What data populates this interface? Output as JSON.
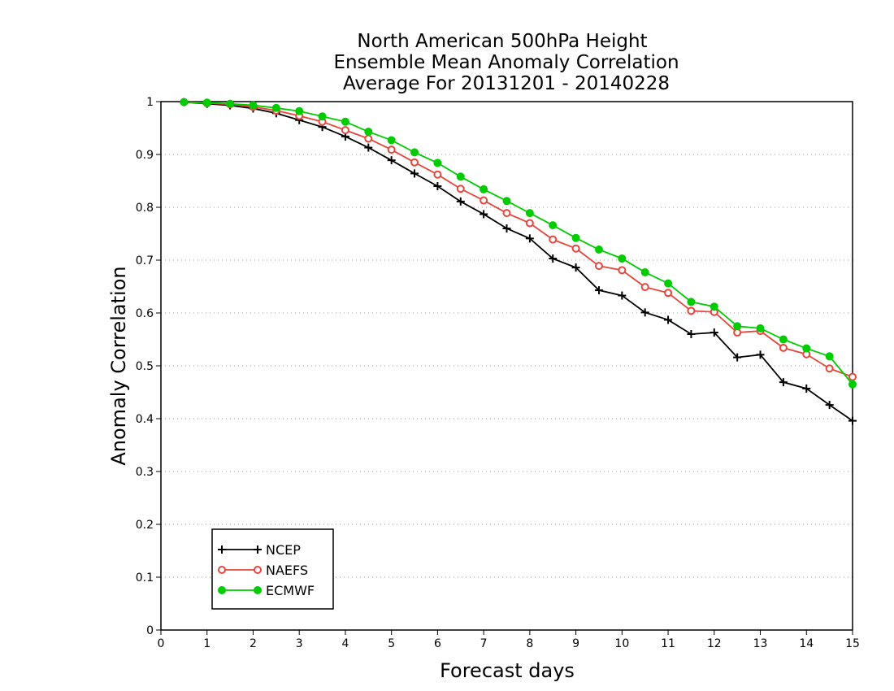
{
  "chart_data": {
    "type": "line",
    "title_lines": [
      "North American 500hPa Height",
      "Ensemble Mean Anomaly Correlation",
      "Average For 20131201 - 20140228"
    ],
    "xlabel": "Forecast days",
    "ylabel": "Anomaly Correlation",
    "xlim": [
      0,
      15
    ],
    "ylim": [
      0,
      1
    ],
    "xticks": [
      0,
      1,
      2,
      3,
      4,
      5,
      6,
      7,
      8,
      9,
      10,
      11,
      12,
      13,
      14,
      15
    ],
    "yticks": [
      0,
      0.1,
      0.2,
      0.3,
      0.4,
      0.5,
      0.6,
      0.7,
      0.8,
      0.9,
      1
    ],
    "ytick_labels": [
      "0",
      "0.1",
      "0.2",
      "0.3",
      "0.4",
      "0.5",
      "0.6",
      "0.7",
      "0.8",
      "0.9",
      "1"
    ],
    "grid": "dotted horizontal",
    "legend_position": "bottom-left",
    "x": [
      0.5,
      1,
      1.5,
      2,
      2.5,
      3,
      3.5,
      4,
      4.5,
      5,
      5.5,
      6,
      6.5,
      7,
      7.5,
      8,
      8.5,
      9,
      9.5,
      10,
      10.5,
      11,
      11.5,
      12,
      12.5,
      13,
      13.5,
      14,
      14.5,
      15
    ],
    "series": [
      {
        "name": "NCEP",
        "color": "#000000",
        "marker": "plus",
        "values": [
          0.999,
          0.996,
          0.993,
          0.987,
          0.978,
          0.965,
          0.952,
          0.934,
          0.913,
          0.889,
          0.864,
          0.84,
          0.811,
          0.787,
          0.76,
          0.741,
          0.703,
          0.686,
          0.643,
          0.633,
          0.601,
          0.587,
          0.56,
          0.563,
          0.516,
          0.521,
          0.469,
          0.457,
          0.426,
          0.396
        ]
      },
      {
        "name": "NAEFS",
        "color": "#e8453c",
        "marker": "open-circle",
        "values": [
          0.999,
          0.997,
          0.995,
          0.99,
          0.983,
          0.973,
          0.962,
          0.946,
          0.93,
          0.909,
          0.885,
          0.862,
          0.835,
          0.813,
          0.789,
          0.77,
          0.739,
          0.722,
          0.689,
          0.681,
          0.649,
          0.638,
          0.604,
          0.602,
          0.563,
          0.566,
          0.534,
          0.522,
          0.495,
          0.479
        ]
      },
      {
        "name": "ECMWF",
        "color": "#00cc00",
        "marker": "filled-circle",
        "values": [
          0.999,
          0.998,
          0.996,
          0.993,
          0.988,
          0.982,
          0.972,
          0.962,
          0.943,
          0.927,
          0.904,
          0.884,
          0.858,
          0.834,
          0.812,
          0.789,
          0.766,
          0.742,
          0.72,
          0.703,
          0.677,
          0.656,
          0.621,
          0.612,
          0.575,
          0.571,
          0.55,
          0.533,
          0.518,
          0.465
        ]
      }
    ]
  }
}
